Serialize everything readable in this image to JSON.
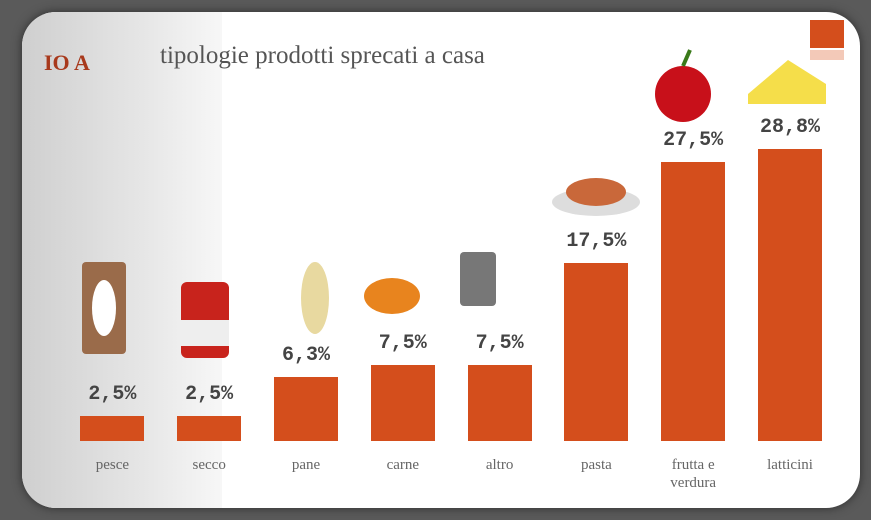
{
  "chart_data": {
    "type": "bar",
    "title": "tipologie prodotti sprecati a casa",
    "section_label": "IO A",
    "categories": [
      "pesce",
      "secco",
      "pane",
      "carne",
      "altro",
      "pasta",
      "frutta e verdura",
      "latticini"
    ],
    "values": [
      2.5,
      2.5,
      6.3,
      7.5,
      7.5,
      17.5,
      27.5,
      28.8
    ],
    "value_labels": [
      "2,5%",
      "2,5%",
      "6,3%",
      "7,5%",
      "7,5%",
      "17,5%",
      "27,5%",
      "28,8%"
    ],
    "color": "#d44e1c"
  }
}
